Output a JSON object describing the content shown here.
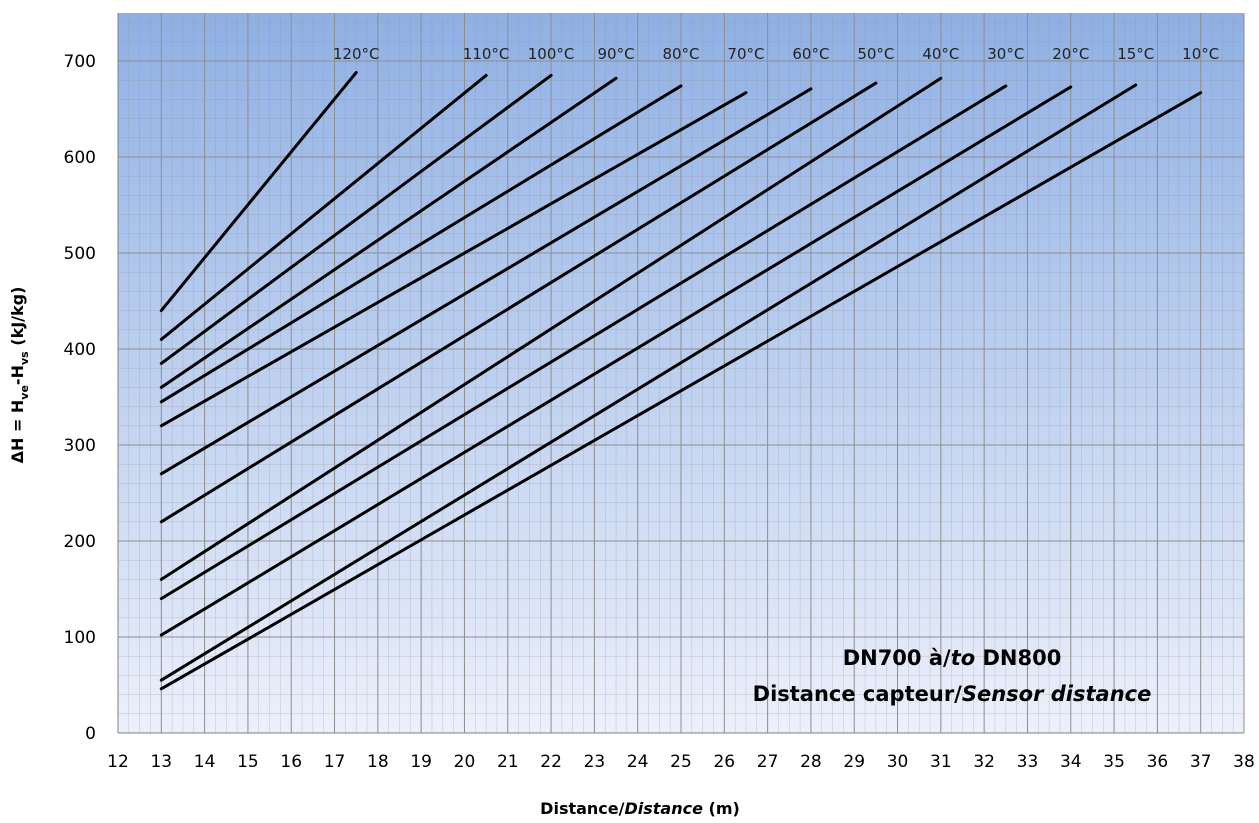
{
  "chart_data": {
    "type": "line",
    "title": "",
    "xlabel": {
      "part1": "Distance/",
      "part2": "Distance",
      "part3": " (m)"
    },
    "ylabel": {
      "base": "ΔH = H",
      "sub1": "ve",
      "mid": "-H",
      "sub2": "vs",
      "end": " (kJ/kg)"
    },
    "xlim": [
      12,
      38
    ],
    "ylim": [
      0,
      750
    ],
    "x_ticks": [
      12,
      13,
      14,
      15,
      16,
      17,
      18,
      19,
      20,
      21,
      22,
      23,
      24,
      25,
      26,
      27,
      28,
      29,
      30,
      31,
      32,
      33,
      34,
      35,
      36,
      37,
      38
    ],
    "y_ticks": [
      0,
      100,
      200,
      300,
      400,
      500,
      600,
      700
    ],
    "grid": true,
    "legend": "inline-labels-top",
    "colors": {
      "line": "#000000",
      "bg_top": "#8fb0e4",
      "bg_bottom": "#ecf0fb",
      "grid": "#8e8e8e"
    },
    "annotation": {
      "line1": {
        "a": "DN700 à/",
        "b": "to",
        "c": " DN800"
      },
      "line2": {
        "a": "Distance capteur/",
        "b": "Sensor distance"
      }
    },
    "series": [
      {
        "name": "120°C",
        "x": [
          13,
          17.5
        ],
        "y": [
          440,
          688
        ]
      },
      {
        "name": "110°C",
        "x": [
          13,
          20.5
        ],
        "y": [
          410,
          685
        ]
      },
      {
        "name": "100°C",
        "x": [
          13,
          22
        ],
        "y": [
          385,
          685
        ]
      },
      {
        "name": "90°C",
        "x": [
          13,
          23.5
        ],
        "y": [
          360,
          682
        ]
      },
      {
        "name": "80°C",
        "x": [
          13,
          25
        ],
        "y": [
          345,
          674
        ]
      },
      {
        "name": "70°C",
        "x": [
          13,
          26.5
        ],
        "y": [
          320,
          667
        ]
      },
      {
        "name": "60°C",
        "x": [
          13,
          28
        ],
        "y": [
          270,
          671
        ]
      },
      {
        "name": "50°C",
        "x": [
          13,
          29.5
        ],
        "y": [
          220,
          677
        ]
      },
      {
        "name": "40°C",
        "x": [
          13,
          31
        ],
        "y": [
          160,
          682
        ]
      },
      {
        "name": "30°C",
        "x": [
          13,
          32.5
        ],
        "y": [
          140,
          674
        ]
      },
      {
        "name": "20°C",
        "x": [
          13,
          34
        ],
        "y": [
          102,
          673
        ]
      },
      {
        "name": "15°C",
        "x": [
          13,
          35.5
        ],
        "y": [
          55,
          675
        ]
      },
      {
        "name": "10°C",
        "x": [
          13,
          37
        ],
        "y": [
          46,
          667
        ]
      }
    ]
  }
}
